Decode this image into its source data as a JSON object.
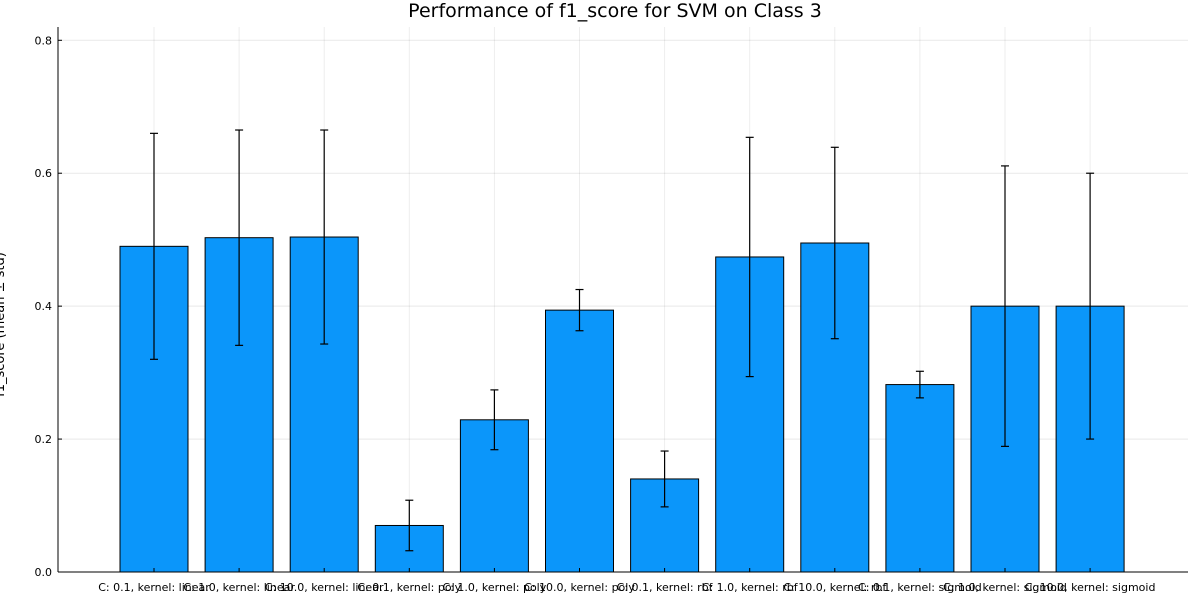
{
  "chart_data": {
    "type": "bar",
    "title": "Performance of f1_score for SVM on Class 3",
    "xlabel": "",
    "ylabel": "f1_score (mean ± std)",
    "ylim": [
      0,
      0.82
    ],
    "yticks": [
      0.0,
      0.2,
      0.4,
      0.6,
      0.8
    ],
    "ytick_labels": [
      "0.0",
      "0.2",
      "0.4",
      "0.6",
      "0.8"
    ],
    "grid": true,
    "legend": "none",
    "bar_color": "#0b96fa",
    "categories": [
      "C: 0.1, kernel: linear",
      "C: 1.0, kernel: linear",
      "C: 10.0, kernel: linear",
      "C: 0.1, kernel: poly",
      "C: 1.0, kernel: poly",
      "C: 10.0, kernel: poly",
      "C: 0.1, kernel: rbf",
      "C: 1.0, kernel: rbf",
      "C: 10.0, kernel: rbf",
      "C: 0.1, kernel: sigmoid",
      "C: 1.0, kernel: sigmoid",
      "C: 10.0, kernel: sigmoid"
    ],
    "values": [
      0.49,
      0.503,
      0.504,
      0.07,
      0.229,
      0.394,
      0.14,
      0.474,
      0.495,
      0.282,
      0.4,
      0.4
    ],
    "errors": [
      0.17,
      0.162,
      0.161,
      0.038,
      0.045,
      0.031,
      0.042,
      0.18,
      0.144,
      0.02,
      0.211,
      0.2
    ]
  }
}
